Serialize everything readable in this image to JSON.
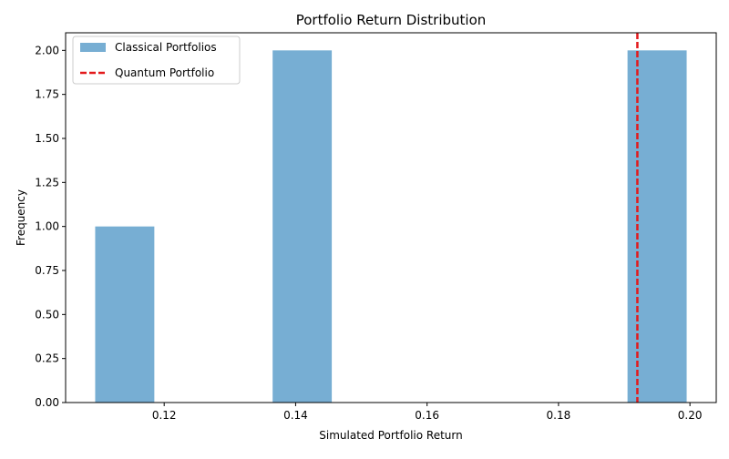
{
  "chart_data": {
    "type": "bar",
    "title": "Portfolio Return Distribution",
    "xlabel": "Simulated Portfolio Return",
    "ylabel": "Frequency",
    "xlim": [
      0.105,
      0.204
    ],
    "ylim": [
      0,
      2.1
    ],
    "x_ticks": [
      0.12,
      0.14,
      0.16,
      0.18,
      0.2
    ],
    "x_tick_labels": [
      "0.12",
      "0.14",
      "0.16",
      "0.18",
      "0.20"
    ],
    "y_ticks": [
      0,
      0.25,
      0.5,
      0.75,
      1.0,
      1.25,
      1.5,
      1.75,
      2.0
    ],
    "y_tick_labels": [
      "0.00",
      "0.25",
      "0.50",
      "0.75",
      "1.00",
      "1.25",
      "1.50",
      "1.75",
      "2.00"
    ],
    "grid": false,
    "legend_position": "top-left",
    "series": [
      {
        "name": "Classical Portfolios",
        "kind": "histogram",
        "color": "#77aed3",
        "bins": [
          {
            "x0": 0.1095,
            "x1": 0.1185,
            "count": 1
          },
          {
            "x0": 0.1365,
            "x1": 0.1455,
            "count": 2
          },
          {
            "x0": 0.1905,
            "x1": 0.1995,
            "count": 2
          }
        ]
      },
      {
        "name": "Quantum Portfolio",
        "kind": "vline",
        "style": "dashed",
        "color": "#e31a1c",
        "x": 0.192
      }
    ]
  }
}
